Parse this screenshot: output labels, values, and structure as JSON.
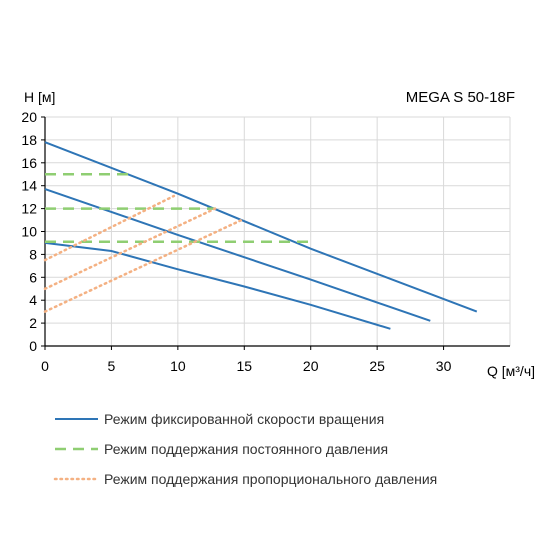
{
  "chart_data": {
    "type": "line",
    "title": "MEGA S 50-18F",
    "xlabel": "Q [м³/ч]",
    "ylabel": "H [м]",
    "xlim": [
      0,
      35
    ],
    "ylim": [
      0,
      20
    ],
    "x_ticks": [
      0,
      5,
      10,
      15,
      20,
      25,
      30
    ],
    "y_ticks": [
      0,
      2,
      4,
      6,
      8,
      10,
      12,
      14,
      16,
      18,
      20
    ],
    "grid": true,
    "legend_position": "bottom",
    "colors": {
      "fixed": "#2e75b6",
      "constant": "#8fce72",
      "proportional": "#f4b183",
      "grid": "#d9d9d9",
      "axis": "#000000"
    },
    "legend": [
      {
        "key": "fixed",
        "label": "Режим фиксированной скорости вращения",
        "style": "solid"
      },
      {
        "key": "constant",
        "label": "Режим поддержания постоянного давления",
        "style": "dashed"
      },
      {
        "key": "proportional",
        "label": "Режим поддержания пропорционального давления",
        "style": "dotted"
      }
    ],
    "series": [
      {
        "group": "fixed",
        "x": [
          0,
          10,
          20,
          32.5
        ],
        "y": [
          17.8,
          13.3,
          8.5,
          3.0
        ]
      },
      {
        "group": "fixed",
        "x": [
          0,
          10,
          20,
          29
        ],
        "y": [
          13.7,
          9.7,
          5.8,
          2.2
        ]
      },
      {
        "group": "fixed",
        "x": [
          0,
          5,
          10,
          15,
          20,
          26
        ],
        "y": [
          9.0,
          8.3,
          6.7,
          5.2,
          3.6,
          1.5
        ]
      },
      {
        "group": "constant",
        "x": [
          0,
          6.5
        ],
        "y": [
          15.0,
          15.0
        ]
      },
      {
        "group": "constant",
        "x": [
          0,
          12.8
        ],
        "y": [
          12.0,
          12.0
        ]
      },
      {
        "group": "constant",
        "x": [
          0,
          20
        ],
        "y": [
          9.1,
          9.1
        ]
      },
      {
        "group": "proportional",
        "x": [
          0,
          9.7
        ],
        "y": [
          7.5,
          13.1
        ]
      },
      {
        "group": "proportional",
        "x": [
          0,
          12.8
        ],
        "y": [
          5.0,
          12.0
        ]
      },
      {
        "group": "proportional",
        "x": [
          0,
          14.8
        ],
        "y": [
          3.0,
          11.0
        ]
      }
    ]
  }
}
